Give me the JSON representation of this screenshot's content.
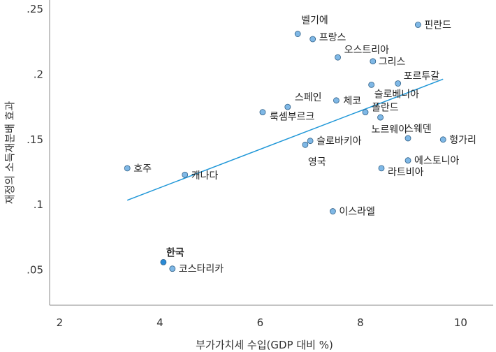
{
  "chart_data": {
    "type": "scatter",
    "xlabel": "부가가치세 수입(GDP 대비 %)",
    "ylabel": "재정의 소득재분배 효과",
    "xlim": [
      1.8,
      10.65
    ],
    "ylim": [
      0.023,
      0.257
    ],
    "xticks": [
      2,
      4,
      6,
      8,
      10
    ],
    "xtick_labels": [
      "2",
      "4",
      "6",
      "8",
      "10"
    ],
    "yticks": [
      0.05,
      0.1,
      0.15,
      0.2,
      0.25
    ],
    "ytick_labels": [
      ".05",
      ".1",
      ".15",
      ".2",
      ".25"
    ],
    "grid": false,
    "colors": {
      "point": "#7fb8e6",
      "point_highlight": "#2a8ad6",
      "point_stroke": "#2f5f86",
      "trend": "#1f97d8",
      "axis": "#888888"
    },
    "trendline": {
      "x": [
        3.35,
        9.65
      ],
      "y": [
        0.1035,
        0.1963
      ]
    },
    "points": [
      {
        "label": "벨기에",
        "x": 6.75,
        "y": 0.231
      },
      {
        "label": "프랑스",
        "x": 7.05,
        "y": 0.227
      },
      {
        "label": "핀란드",
        "x": 9.15,
        "y": 0.238
      },
      {
        "label": "오스트리아",
        "x": 7.55,
        "y": 0.213
      },
      {
        "label": "그리스",
        "x": 8.25,
        "y": 0.21
      },
      {
        "label": "포르투갈",
        "x": 8.75,
        "y": 0.193
      },
      {
        "label": "슬로베니아",
        "x": 8.22,
        "y": 0.192
      },
      {
        "label": "체코",
        "x": 7.52,
        "y": 0.18
      },
      {
        "label": "스페인",
        "x": 6.55,
        "y": 0.175
      },
      {
        "label": "폴란드",
        "x": 8.1,
        "y": 0.171
      },
      {
        "label": "룩셈부르크",
        "x": 6.05,
        "y": 0.171
      },
      {
        "label": "노르웨이",
        "x": 8.4,
        "y": 0.167
      },
      {
        "label": "스웨덴",
        "x": 8.95,
        "y": 0.151
      },
      {
        "label": "헝가리",
        "x": 9.65,
        "y": 0.15
      },
      {
        "label": "슬로바키아",
        "x": 7.0,
        "y": 0.149
      },
      {
        "label": "영국",
        "x": 6.9,
        "y": 0.146
      },
      {
        "label": "에스토니아",
        "x": 8.95,
        "y": 0.134
      },
      {
        "label": "라트비아",
        "x": 8.42,
        "y": 0.128
      },
      {
        "label": "호주",
        "x": 3.35,
        "y": 0.128
      },
      {
        "label": "캐나다",
        "x": 4.5,
        "y": 0.123
      },
      {
        "label": "이스라엘",
        "x": 7.45,
        "y": 0.095
      },
      {
        "label": "한국",
        "x": 4.07,
        "y": 0.056,
        "highlight": true
      },
      {
        "label": "코스타리카",
        "x": 4.25,
        "y": 0.051
      }
    ]
  }
}
